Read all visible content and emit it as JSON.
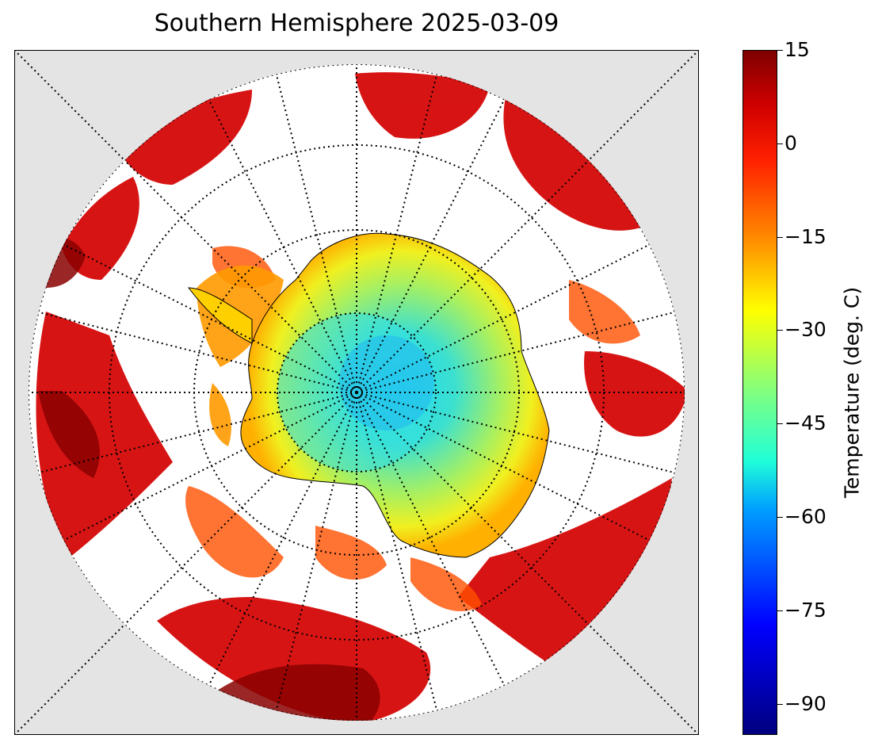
{
  "title": "Southern Hemisphere 2025-03-09",
  "colorbar": {
    "label": "Temperature (deg. C)",
    "ticks": [
      "15",
      "0",
      "−15",
      "−30",
      "−45",
      "−60",
      "−75",
      "−90"
    ],
    "range": [
      -95,
      15
    ],
    "colormap": "jet"
  },
  "map": {
    "projection": "south polar stereographic",
    "background_color": "#e4e4e4",
    "graticule": "dotted"
  }
}
